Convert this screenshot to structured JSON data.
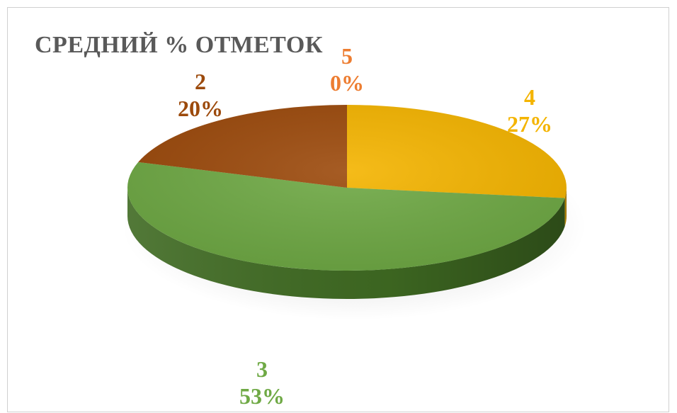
{
  "chart_data": {
    "type": "pie",
    "title": "СРЕДНИЙ % ОТМЕТОК",
    "categories": [
      "4",
      "3",
      "2",
      "5"
    ],
    "values": [
      27,
      53,
      20,
      0
    ],
    "percent_labels": [
      "27%",
      "53%",
      "20%",
      "0%"
    ],
    "colors": [
      "#f4b400",
      "#6fa945",
      "#9c4a0c",
      "#ed7d31"
    ],
    "side_colors": [
      "#b58400",
      "#3f6a22",
      "#5e2c06",
      "#b85a1f"
    ],
    "title_color": "#595959",
    "three_d": true,
    "start_angle_deg": 0,
    "direction": "clockwise"
  }
}
